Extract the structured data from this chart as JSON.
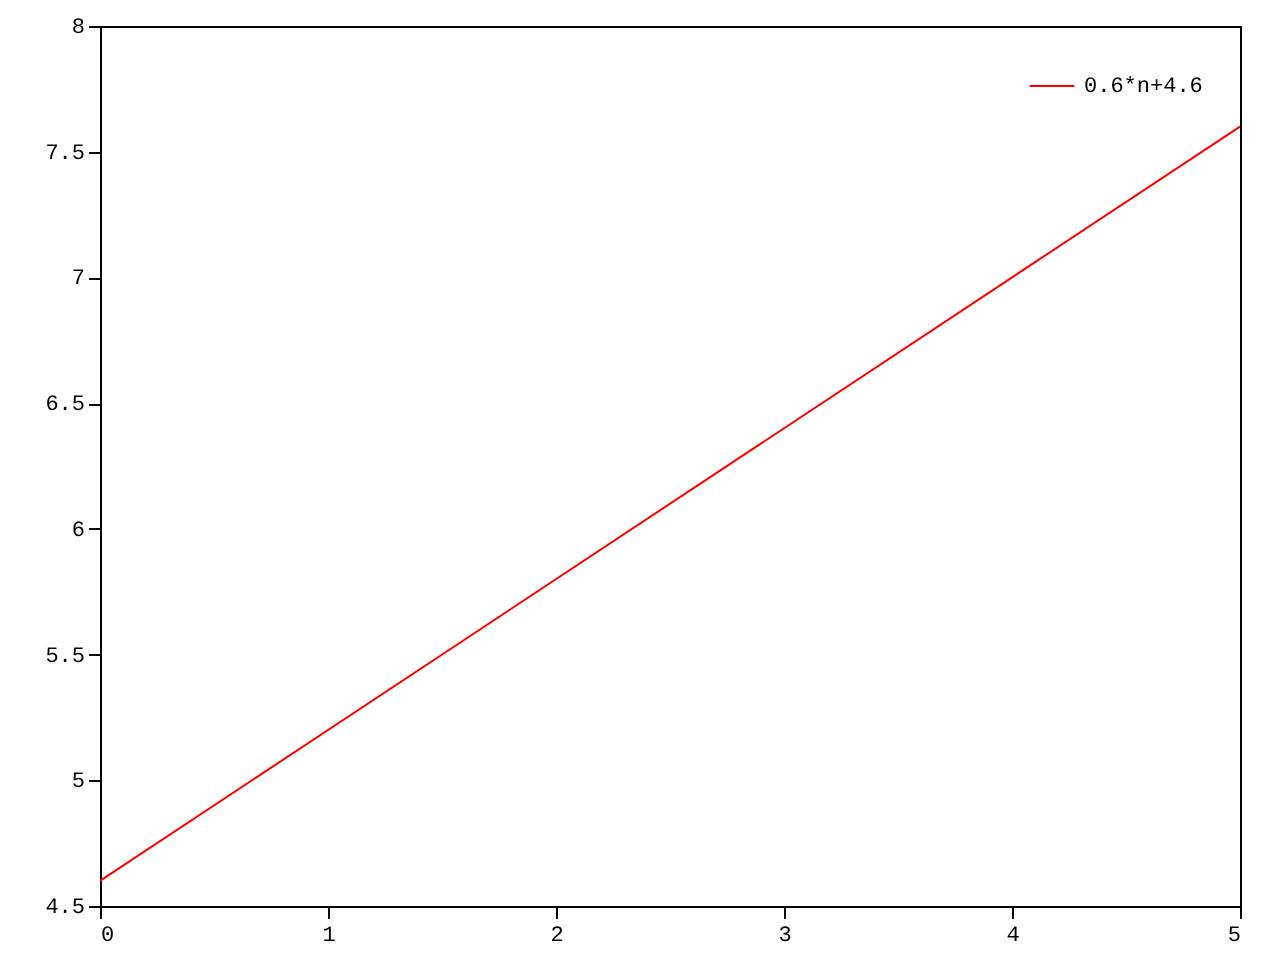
{
  "chart_data": {
    "type": "line",
    "x": [
      0,
      5
    ],
    "series": [
      {
        "name": "0.6*n+4.6",
        "color": "#ff0000",
        "values": [
          4.6,
          7.6
        ]
      }
    ],
    "xlim": [
      0,
      5
    ],
    "xticks": [
      0,
      1,
      2,
      3,
      4,
      5
    ],
    "ylim": [
      4.5,
      8
    ],
    "yticks": [
      4.5,
      5,
      5.5,
      6,
      6.5,
      7,
      7.5,
      8
    ],
    "legend": "top right",
    "grid": false,
    "marker": "none",
    "line_style": "solid"
  }
}
